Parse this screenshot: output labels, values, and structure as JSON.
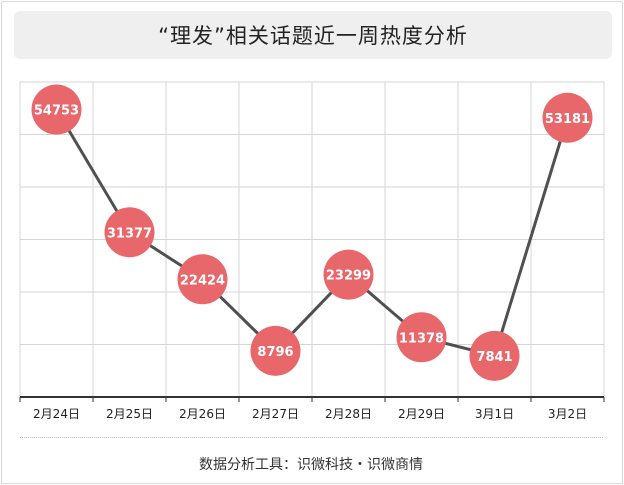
{
  "chart_data": {
    "type": "line",
    "title": "“理发”相关话题近一周热度分析",
    "categories": [
      "2月24日",
      "2月25日",
      "2月26日",
      "2月27日",
      "2月28日",
      "2月29日",
      "3月1日",
      "3月2日"
    ],
    "values": [
      54753,
      31377,
      22424,
      8796,
      23299,
      11378,
      7841,
      53181
    ],
    "xlabel": "",
    "ylabel": "",
    "ylim": [
      0,
      60000
    ],
    "grid": true,
    "colors": {
      "line": "#505050",
      "marker": "#e8676b",
      "label": "#ffffff",
      "grid": "#d6d6d6",
      "axis": "#333333"
    }
  },
  "footer": {
    "text": "数据分析工具：识微科技・识微商情"
  }
}
